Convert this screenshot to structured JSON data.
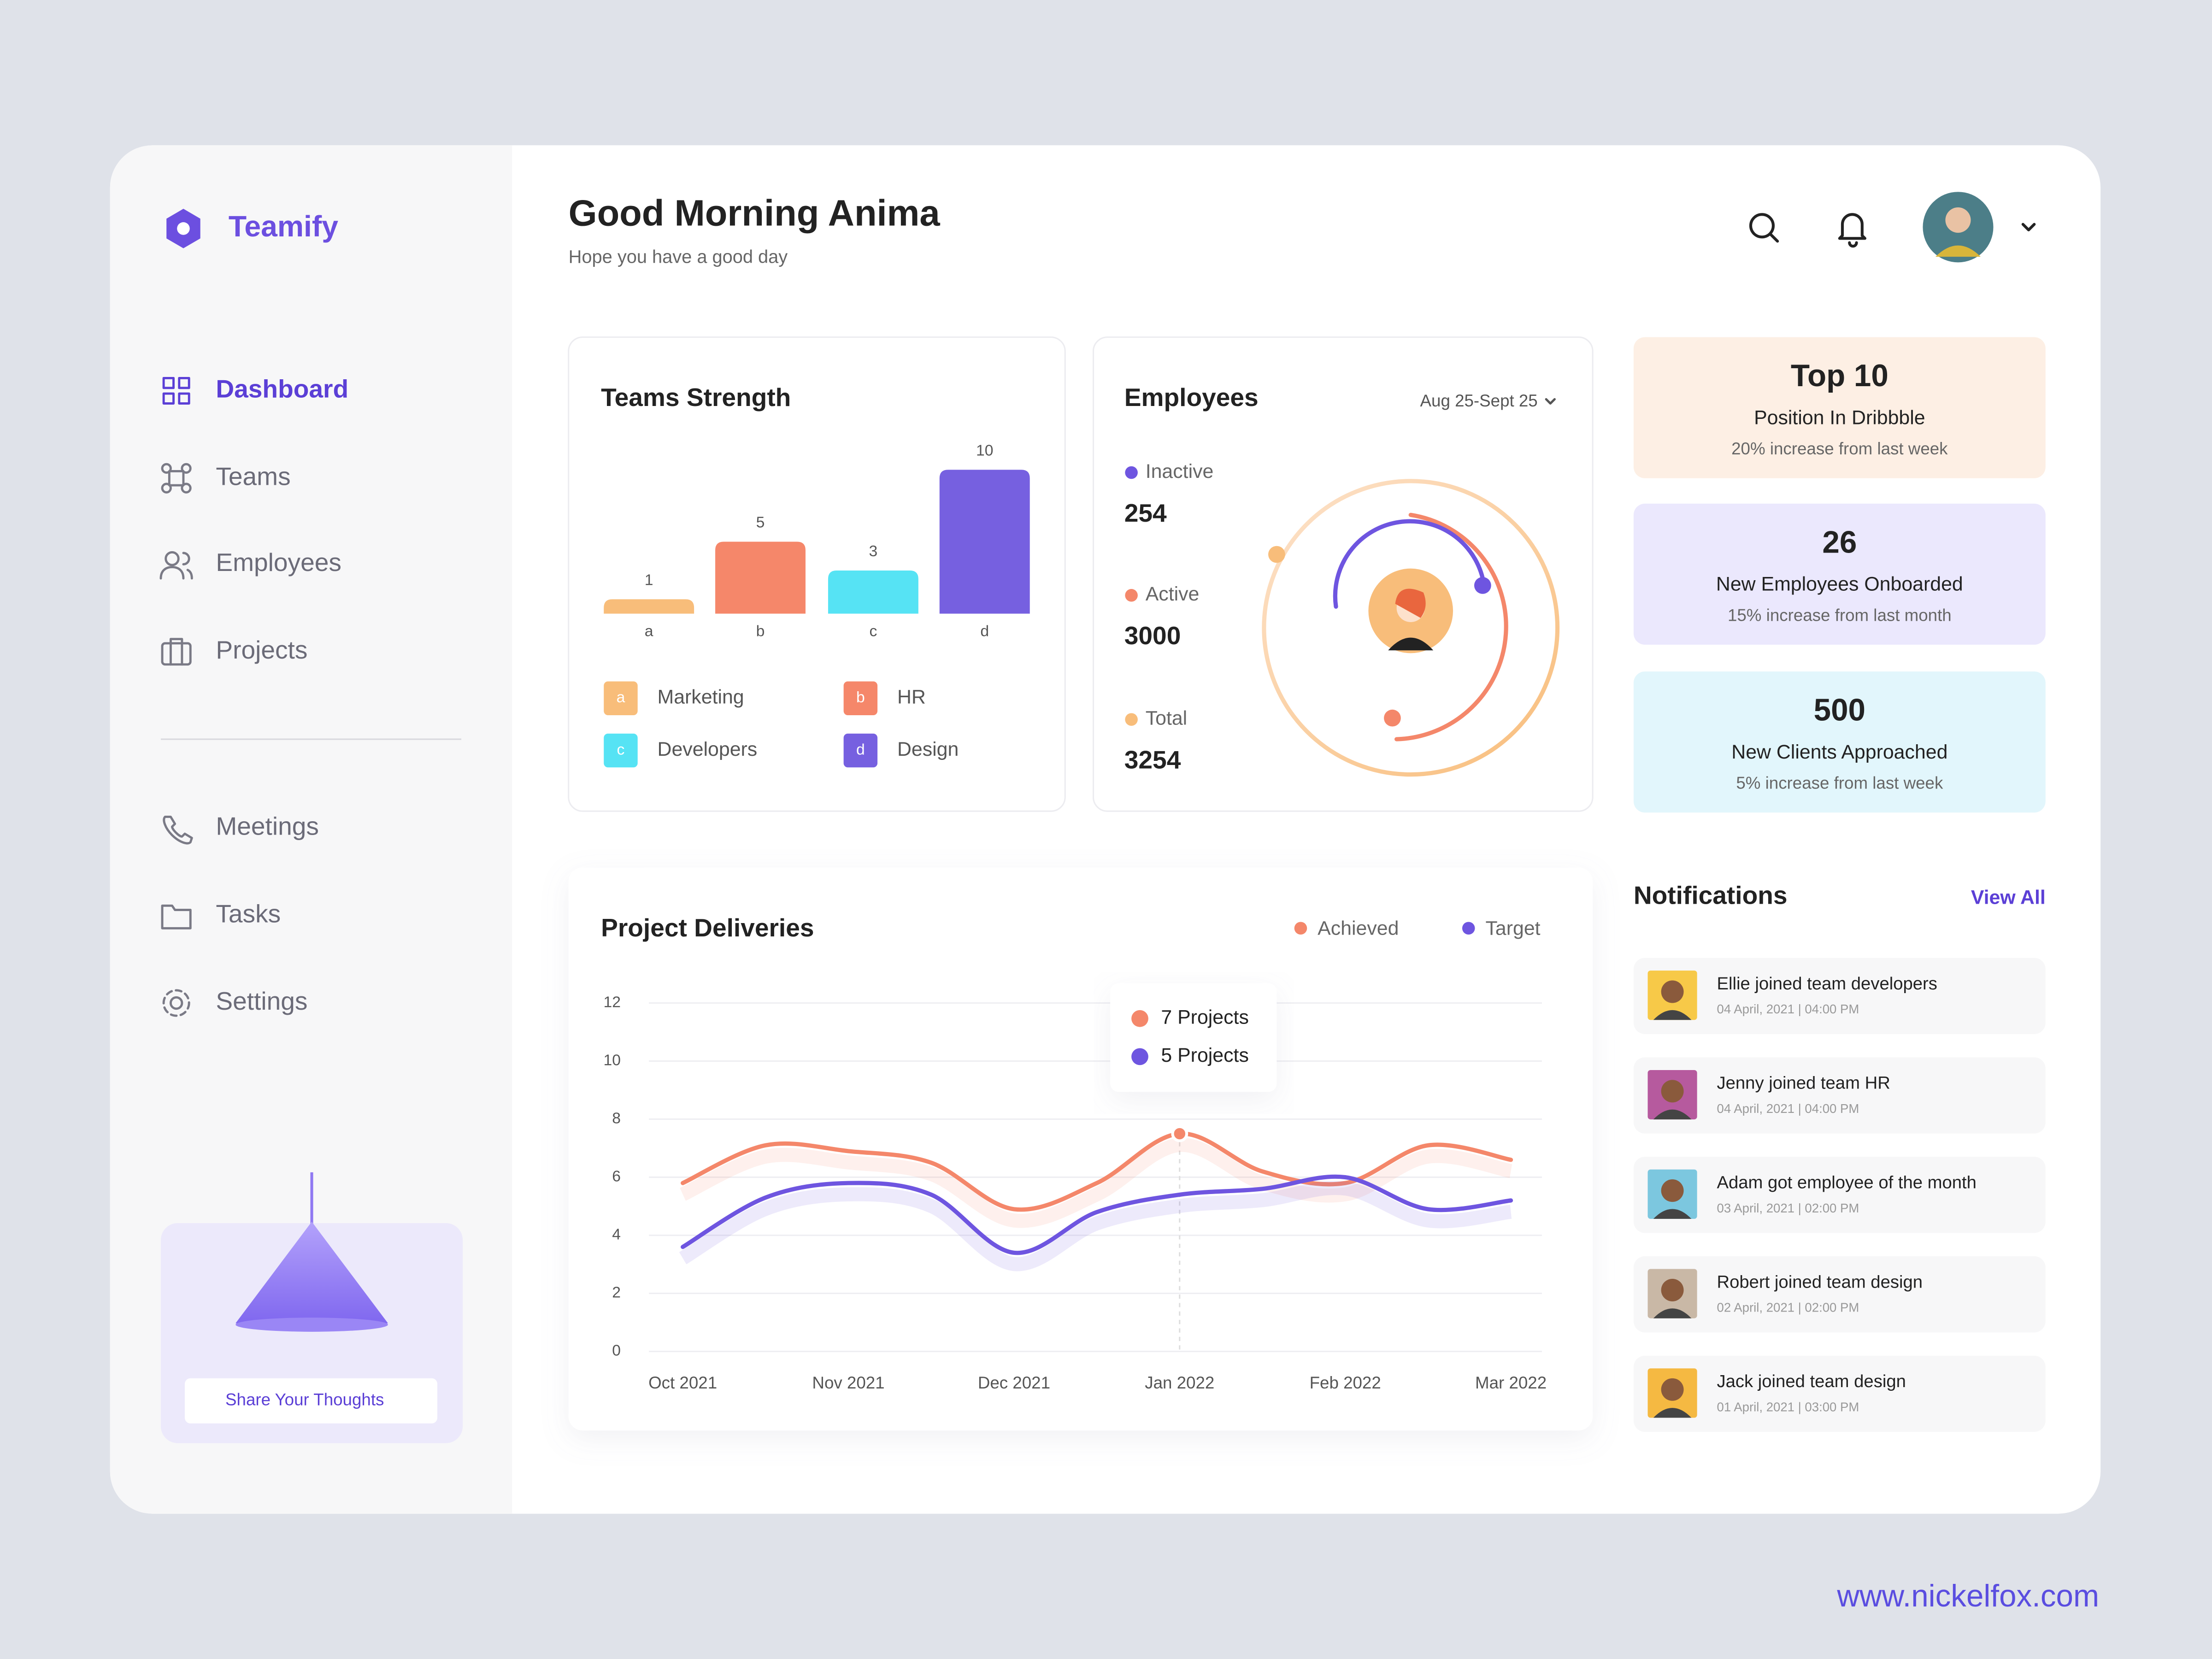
{
  "brand": "Teamify",
  "nav": {
    "main": [
      "Dashboard",
      "Teams",
      "Employees",
      "Projects"
    ],
    "secondary": [
      "Meetings",
      "Tasks",
      "Settings"
    ]
  },
  "promo": {
    "button": "Share Your Thoughts"
  },
  "header": {
    "title": "Good Morning Anima",
    "subtitle": "Hope you have a good day"
  },
  "chart_data": [
    {
      "type": "bar",
      "title": "Teams Strength",
      "categories": [
        "a",
        "b",
        "c",
        "d"
      ],
      "values": [
        1,
        5,
        3,
        10
      ],
      "colors": [
        "#f8bd7a",
        "#f5876a",
        "#56e3f4",
        "#7660e0"
      ],
      "legend": [
        "Marketing",
        "HR",
        "Developers",
        "Design"
      ]
    },
    {
      "type": "line",
      "title": "Project Deliveries",
      "categories": [
        "Oct 2021",
        null,
        "Nov 2021",
        null,
        "Dec 2021",
        null,
        "Jan 2022",
        null,
        "Feb 2022",
        null,
        "Mar 2022"
      ],
      "series": [
        {
          "name": "Achieved",
          "color": "#f4876a",
          "values": [
            5.8,
            7.1,
            6.9,
            6.5,
            4.9,
            5.8,
            7.5,
            6.2,
            5.8,
            7.1,
            6.6
          ]
        },
        {
          "name": "Target",
          "color": "#6e55e0",
          "values": [
            3.6,
            5.3,
            5.8,
            5.4,
            3.4,
            4.8,
            5.4,
            5.6,
            6.0,
            4.9,
            5.2
          ]
        }
      ],
      "ylim": [
        0,
        12
      ],
      "yticks": [
        0,
        2,
        4,
        6,
        8,
        10,
        12
      ],
      "grid": true,
      "tooltip": [
        "7 Projects",
        "5 Projects"
      ]
    }
  ],
  "employees": {
    "title": "Employees",
    "period": "Aug 25-Sept 25",
    "items": [
      {
        "label": "Inactive",
        "value": 254,
        "color": "#6e55e0"
      },
      {
        "label": "Active",
        "value": 3000,
        "color": "#f4876a"
      },
      {
        "label": "Total",
        "value": 3254,
        "color": "#f8bd7a"
      }
    ]
  },
  "stats": [
    {
      "headline": "Top 10",
      "label": "Position In Dribbble",
      "note": "20% increase from last week",
      "color": "#fdefe4"
    },
    {
      "headline": "26",
      "label": "New Employees Onboarded",
      "note": "15% increase from last month",
      "color": "#ebe8fd"
    },
    {
      "headline": "500",
      "label": "New Clients Approached",
      "note": "5% increase from last week",
      "color": "#e2f6fc"
    }
  ],
  "notifications": {
    "title": "Notifications",
    "action": "View All",
    "items": [
      {
        "text": "Ellie joined team developers",
        "time": "04 April, 2021 | 04:00 PM",
        "color": "#f7c948"
      },
      {
        "text": "Jenny joined team HR",
        "time": "04 April, 2021 | 04:00 PM",
        "color": "#b65a9e"
      },
      {
        "text": "Adam got employee of the month",
        "time": "03 April, 2021 | 02:00 PM",
        "color": "#7cc7df"
      },
      {
        "text": "Robert joined team design",
        "time": "02 April, 2021 | 02:00 PM",
        "color": "#c9b8a6"
      },
      {
        "text": "Jack joined team design",
        "time": "01 April, 2021 | 03:00 PM",
        "color": "#f5b942"
      }
    ]
  },
  "footer": "www.nickelfox.com"
}
